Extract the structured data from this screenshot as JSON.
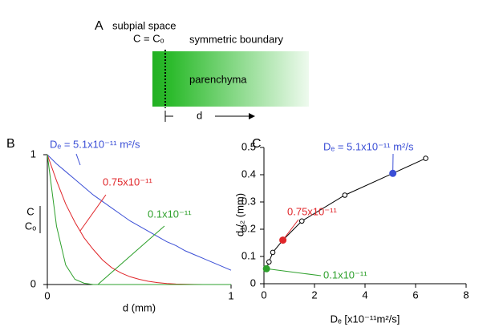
{
  "panel_a": {
    "label": "A",
    "boundary_label": "subpial space",
    "boundary_condition": "C = Cₒ",
    "far_boundary": "symmetric boundary",
    "region": "parenchyma",
    "distance": "d"
  },
  "chart_data": [
    {
      "panel": "B",
      "type": "line",
      "x_label": "d (mm)",
      "y_label": {
        "numerator": "C",
        "denominator": "Cₒ"
      },
      "x": [
        0,
        0.05,
        0.1,
        0.15,
        0.2,
        0.25,
        0.3,
        0.35,
        0.4,
        0.45,
        0.5,
        0.55,
        0.6,
        0.65,
        0.7,
        0.75,
        0.8,
        0.85,
        0.9,
        0.95,
        1
      ],
      "xlim": [
        0,
        1
      ],
      "xticks": [
        0,
        1
      ],
      "ylim": [
        0,
        1
      ],
      "yticks": [
        0,
        1
      ],
      "series": [
        {
          "name": "Dₑ = 5.1x10⁻¹¹ m²/s",
          "color": "#3b4fd6",
          "values": [
            1,
            0.93,
            0.87,
            0.81,
            0.75,
            0.69,
            0.64,
            0.59,
            0.54,
            0.49,
            0.45,
            0.41,
            0.37,
            0.33,
            0.3,
            0.26,
            0.23,
            0.2,
            0.17,
            0.14,
            0.11
          ]
        },
        {
          "name": "0.75x10⁻¹¹",
          "color": "#e0262a",
          "values": [
            1,
            0.8,
            0.62,
            0.48,
            0.36,
            0.27,
            0.19,
            0.13,
            0.09,
            0.06,
            0.04,
            0.025,
            0.015,
            0.008,
            0.004,
            0.002,
            0.001,
            0,
            0,
            0,
            0
          ]
        },
        {
          "name": "0.1x10⁻¹¹",
          "color": "#2ea02c",
          "values": [
            1,
            0.45,
            0.15,
            0.04,
            0.01,
            0,
            0,
            0,
            0,
            0,
            0,
            0,
            0,
            0,
            0,
            0,
            0,
            0,
            0,
            0,
            0
          ]
        }
      ]
    },
    {
      "panel": "C",
      "type": "line",
      "x_label": "Dₑ [x10⁻¹¹m²/s]",
      "y_label": "d₁/₂ (mm)",
      "x": [
        0.1,
        0.2,
        0.35,
        0.75,
        1.5,
        3.2,
        5.1,
        6.4
      ],
      "xlim": [
        0,
        8
      ],
      "xticks": [
        0,
        2,
        4,
        6,
        8
      ],
      "ylim": [
        0,
        0.5
      ],
      "yticks": [
        0,
        0.1,
        0.2,
        0.3,
        0.4,
        0.5
      ],
      "series": [
        {
          "color": "#000000",
          "values": [
            0.055,
            0.08,
            0.115,
            0.16,
            0.23,
            0.325,
            0.405,
            0.46
          ],
          "point_colors": [
            "#2ea02c",
            null,
            null,
            "#e0262a",
            null,
            null,
            "#3b4fd6",
            null
          ],
          "point_labels": [
            "0.1x10⁻¹¹",
            null,
            null,
            "0.75x10⁻¹¹",
            null,
            null,
            "Dₑ = 5.1x10⁻¹¹ m²/s",
            null
          ]
        }
      ]
    }
  ]
}
